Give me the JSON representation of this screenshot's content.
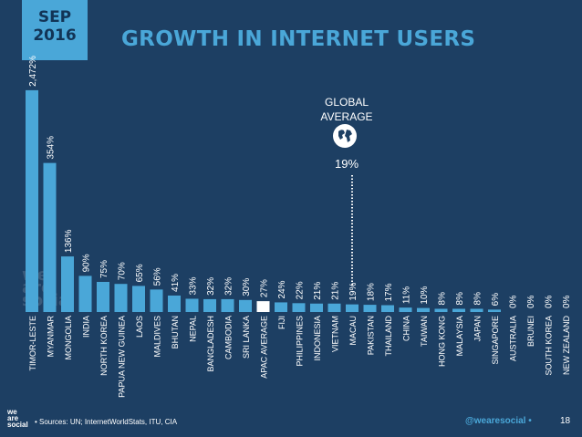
{
  "header": {
    "date_line1": "SEP",
    "date_line2": "2016",
    "title": "GROWTH IN INTERNET USERS"
  },
  "global_average": {
    "label_line1": "GLOBAL",
    "label_line2": "AVERAGE",
    "value": "19%",
    "icon": "globe-icon"
  },
  "watermark": [
    "we",
    "are",
    "social"
  ],
  "footer": {
    "source": "• Sources: UN; InternetWorldStats, ITU, CIA",
    "handle": "@wearesocial •",
    "page": "18",
    "logo": [
      "we",
      "are",
      "social"
    ]
  },
  "colors": {
    "background": "#1d3f63",
    "bar": "#4aa7d8",
    "average_bar": "#ffffff",
    "accent": "#4aa7d8"
  },
  "chart_data": {
    "type": "bar",
    "categories": [
      "TIMOR-LESTE",
      "MYANMAR",
      "MONGOLIA",
      "INDIA",
      "NORTH KOREA",
      "PAPUA NEW GUINEA",
      "LAOS",
      "MALDIVES",
      "BHUTAN",
      "NEPAL",
      "BANGLADESH",
      "CAMBODIA",
      "SRI LANKA",
      "APAC AVERAGE",
      "FIJI",
      "PHILIPPINES",
      "INDONESIA",
      "VIETNAM",
      "MACAU",
      "PAKISTAN",
      "THAILAND",
      "CHINA",
      "TAIWAN",
      "HONG KONG",
      "MALAYSIA",
      "JAPAN",
      "SINGAPORE",
      "AUSTRALIA",
      "BRUNEI",
      "SOUTH KOREA",
      "NEW ZEALAND"
    ],
    "values": [
      2472,
      354,
      136,
      90,
      75,
      70,
      65,
      56,
      41,
      33,
      32,
      32,
      30,
      27,
      24,
      22,
      21,
      21,
      19,
      18,
      17,
      11,
      10,
      8,
      8,
      8,
      6,
      0,
      0,
      0,
      0
    ],
    "value_labels": [
      "2,472%",
      "354%",
      "136%",
      "90%",
      "75%",
      "70%",
      "65%",
      "56%",
      "41%",
      "33%",
      "32%",
      "32%",
      "30%",
      "27%",
      "24%",
      "22%",
      "21%",
      "21%",
      "19%",
      "18%",
      "17%",
      "11%",
      "10%",
      "8%",
      "8%",
      "8%",
      "6%",
      "0%",
      "0%",
      "0%",
      "0%"
    ],
    "highlight_category": "APAC AVERAGE",
    "reference_line": 19,
    "scale": "non-linear (largest bars truncated)"
  }
}
